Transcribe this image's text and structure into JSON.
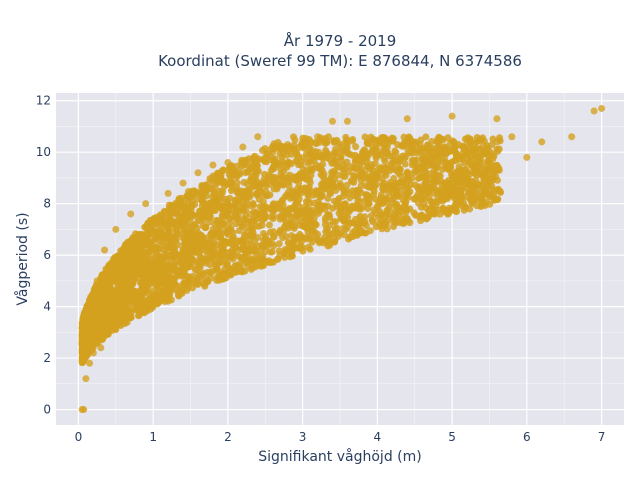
{
  "chart_data": {
    "type": "scatter",
    "title": "År 1979 - 2019",
    "subtitle": "Koordinat (Sweref 99 TM): E 876844, N 6374586",
    "xlabel": "Signifikant våghöjd (m)",
    "ylabel": "Vågperiod (s)",
    "xlim": [
      -0.3,
      7.3
    ],
    "ylim": [
      -0.6,
      12.3
    ],
    "x_ticks": [
      0,
      1,
      2,
      3,
      4,
      5,
      6,
      7
    ],
    "y_ticks": [
      0,
      2,
      4,
      6,
      8,
      10,
      12
    ],
    "grid": true,
    "marker_color": "#d4a11f",
    "plot_bg": "#e5e5ee",
    "series": [
      {
        "x": [
          0.05,
          0.07,
          0.1,
          0.1,
          0.15,
          0.2,
          0.25,
          0.3,
          0.35,
          0.4,
          0.5,
          0.6,
          0.7,
          0.8,
          0.9,
          1.0,
          1.2,
          1.4,
          1.6,
          1.8,
          2.0,
          2.2,
          2.4,
          2.6,
          2.8,
          3.0,
          3.2,
          3.4,
          3.6,
          3.8,
          4.0,
          4.2,
          4.4,
          4.6,
          4.8,
          5.0,
          5.2,
          5.4,
          5.6,
          5.8,
          6.0,
          6.2,
          6.6,
          6.9,
          7.0,
          0.2,
          0.3,
          0.5,
          0.7,
          0.9,
          1.1,
          1.3,
          1.5,
          1.7,
          1.9,
          2.1,
          2.3,
          2.5,
          2.7,
          3.3,
          3.5,
          3.7,
          0.15,
          0.25,
          0.35,
          0.45,
          0.55,
          0.65,
          0.75,
          0.85,
          0.95,
          1.05,
          1.15,
          1.25,
          1.35,
          1.45,
          1.55,
          1.65,
          1.75,
          2.35,
          2.55,
          5.6,
          5.3,
          4.8,
          4.5,
          4.1
        ],
        "y": [
          0.0,
          0.0,
          1.2,
          3.5,
          1.8,
          2.2,
          5.0,
          2.4,
          6.2,
          3.0,
          7.0,
          3.5,
          7.6,
          4.0,
          8.0,
          4.4,
          8.4,
          8.8,
          9.2,
          9.5,
          9.6,
          10.2,
          10.6,
          10.0,
          10.3,
          10.4,
          10.6,
          11.2,
          11.2,
          9.2,
          10.4,
          9.6,
          11.3,
          9.8,
          10.4,
          11.4,
          10.4,
          10.2,
          11.3,
          10.6,
          9.8,
          10.4,
          10.6,
          11.6,
          11.7,
          4.2,
          4.6,
          5.2,
          5.8,
          6.4,
          6.8,
          7.2,
          7.6,
          7.9,
          8.1,
          7.5,
          7.6,
          7.9,
          8.0,
          8.6,
          8.8,
          9.0,
          2.8,
          3.6,
          4.4,
          5.0,
          5.6,
          6.0,
          6.4,
          6.8,
          7.2,
          7.4,
          7.7,
          7.9,
          8.2,
          8.3,
          8.5,
          8.6,
          8.8,
          6.2,
          6.5,
          10.4,
          9.8,
          10.0,
          9.6,
          9.4
        ]
      }
    ]
  }
}
